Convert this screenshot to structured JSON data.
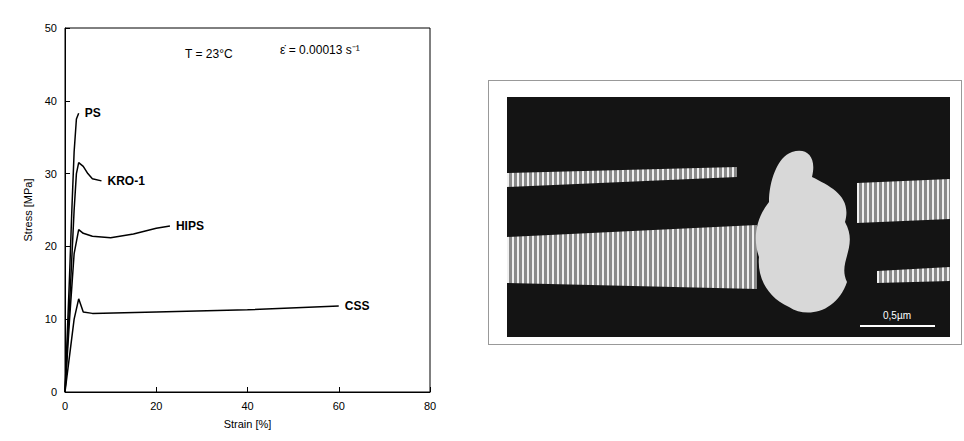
{
  "chart_data": {
    "type": "line",
    "x_label": "Strain [%]",
    "y_label": "Stress [MPa]",
    "annotations": [
      "T = 23°C",
      "ε̇ = 0.00013 s⁻¹"
    ],
    "xlim": [
      0,
      80
    ],
    "xticks": [
      0,
      20,
      40,
      60,
      80
    ],
    "ylim": [
      0,
      50
    ],
    "yticks": [
      0,
      10,
      20,
      30,
      40,
      50
    ],
    "grid": false,
    "series": [
      {
        "name": "PS",
        "color": "#000000",
        "x": [
          0,
          0.5,
          1,
          1.5,
          2,
          2.5,
          3
        ],
        "values": [
          0,
          8,
          16,
          25,
          33,
          37.5,
          38.3
        ]
      },
      {
        "name": "KRO-1",
        "color": "#000000",
        "x": [
          0,
          1,
          2,
          2.5,
          3,
          4,
          5,
          6,
          8
        ],
        "values": [
          0,
          12,
          25,
          30,
          31.5,
          31,
          30,
          29.3,
          29
        ]
      },
      {
        "name": "HIPS",
        "color": "#000000",
        "x": [
          0,
          1,
          2,
          3,
          4,
          6,
          10,
          15,
          20,
          23
        ],
        "values": [
          0,
          10,
          19,
          22.3,
          21.8,
          21.4,
          21.2,
          21.7,
          22.5,
          22.8
        ]
      },
      {
        "name": "CSS",
        "color": "#000000",
        "x": [
          0,
          1,
          2,
          3,
          4,
          6,
          20,
          40,
          60
        ],
        "values": [
          0,
          5,
          10,
          12.8,
          11,
          10.8,
          11,
          11.3,
          11.8
        ]
      }
    ]
  },
  "micrograph": {
    "scale_bar_label": "0,5µm"
  }
}
